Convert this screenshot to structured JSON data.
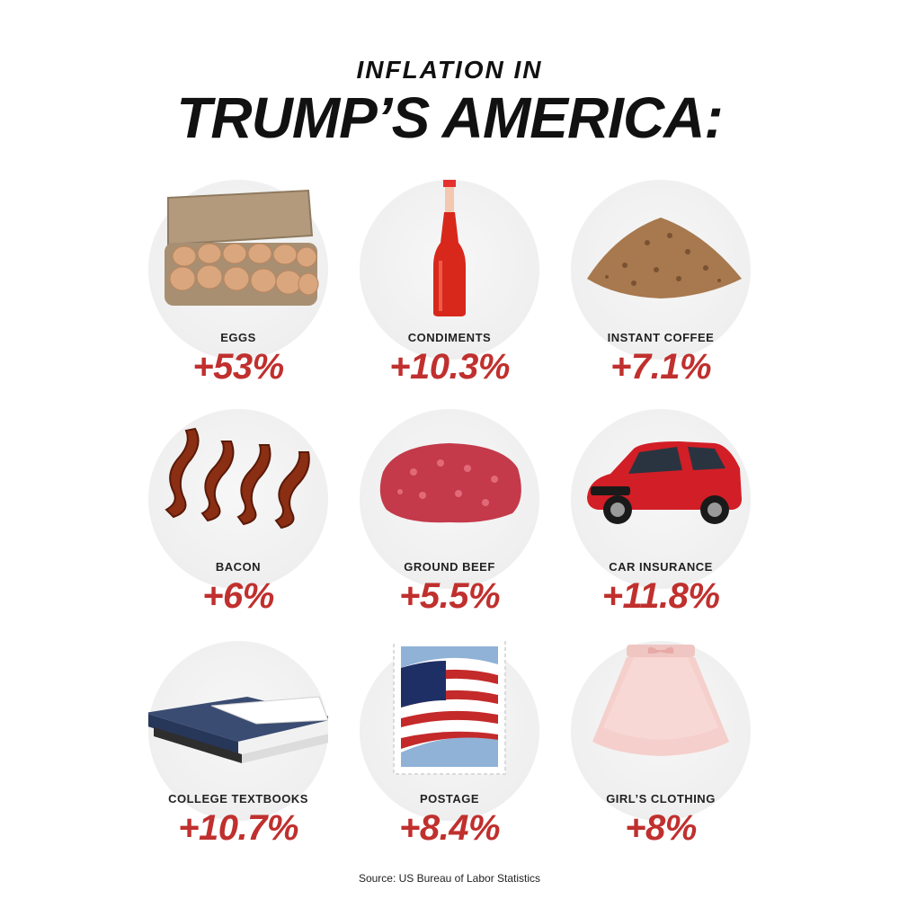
{
  "header": {
    "subtitle": "INFLATION IN",
    "title": "TRUMP’S AMERICA:"
  },
  "items": [
    {
      "label": "EGGS",
      "value": "+53%",
      "icon": "eggs-carton-image"
    },
    {
      "label": "CONDIMENTS",
      "value": "+10.3%",
      "icon": "hot-sauce-bottle-image"
    },
    {
      "label": "INSTANT COFFEE",
      "value": "+7.1%",
      "icon": "coffee-granules-image"
    },
    {
      "label": "BACON",
      "value": "+6%",
      "icon": "bacon-strips-image"
    },
    {
      "label": "GROUND BEEF",
      "value": "+5.5%",
      "icon": "ground-beef-image"
    },
    {
      "label": "CAR INSURANCE",
      "value": "+11.8%",
      "icon": "red-car-image"
    },
    {
      "label": "COLLEGE TEXTBOOKS",
      "value": "+10.7%",
      "icon": "textbooks-stack-image"
    },
    {
      "label": "POSTAGE",
      "value": "+8.4%",
      "icon": "flag-stamp-image"
    },
    {
      "label": "GIRL’S CLOTHING",
      "value": "+8%",
      "icon": "pink-skirt-image"
    }
  ],
  "footer": {
    "source": "Source: US Bureau of Labor Statistics"
  },
  "colors": {
    "accent_red": "#c0302e",
    "text_dark": "#111111",
    "circle_bg": "#efefef"
  }
}
